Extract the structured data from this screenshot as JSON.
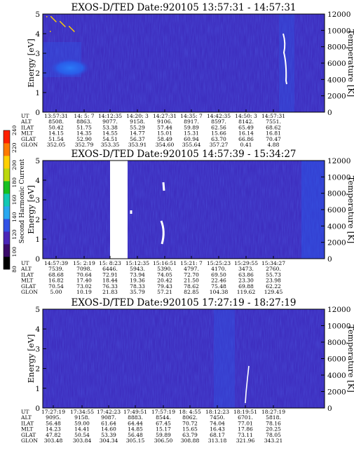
{
  "colors": {
    "background": "#3e2fc0",
    "enhanced": "#1a6cff",
    "streak": "#ffffff",
    "axis": "#000000"
  },
  "colorbar": {
    "label": "Second Harmonic Current",
    "ticks": [
      "80",
      "100",
      "120",
      "140",
      "160",
      "180",
      "200",
      "220",
      "240"
    ],
    "colors": [
      "#000000",
      "#3a0a6a",
      "#4a25b8",
      "#3252e6",
      "#2aa8f0",
      "#12c8b4",
      "#18c020",
      "#bcd80c",
      "#ffd000",
      "#ff7a00",
      "#ff2000"
    ]
  },
  "chart_data": [
    {
      "type": "heatmap",
      "title": "EXOS-D/TED   Date:920105   13:57:31 - 14:57:31",
      "ylabel": "Energy [eV]",
      "y2label": "Temperature [K]",
      "ylim": [
        0,
        5
      ],
      "y2lim": [
        0,
        12000
      ],
      "yticks": [
        "0",
        "1",
        "2",
        "3",
        "4",
        "5"
      ],
      "y2ticks": [
        "0",
        "2000",
        "4000",
        "6000",
        "8000",
        "10000",
        "12000"
      ],
      "ephemeris": {
        "labels": [
          "UT",
          "ALT",
          "ILAT",
          "MLT",
          "GLAT",
          "GLON"
        ],
        "columns": [
          [
            "13:57:31",
            "8508.",
            "50.42",
            "14.15",
            "51.54",
            "352.05"
          ],
          [
            "14: 5: 7",
            "8863.",
            "51.75",
            "14.35",
            "52.90",
            "352.79"
          ],
          [
            "14:12:35",
            "9077.",
            "53.38",
            "14.55",
            "54.51",
            "353.35"
          ],
          [
            "14:20: 3",
            "9158.",
            "55.29",
            "14.77",
            "56.37",
            "353.91"
          ],
          [
            "14:27:31",
            "9106.",
            "57.44",
            "15.01",
            "58.49",
            "354.60"
          ],
          [
            "14:35: 7",
            "8917.",
            "59.89",
            "15.31",
            "60.94",
            "355.64"
          ],
          [
            "14:42:35",
            "8597.",
            "62.56",
            "15.66",
            "63.70",
            "357.27"
          ],
          [
            "14:50: 3",
            "8142.",
            "65.49",
            "16.14",
            "66.86",
            "0.41"
          ],
          [
            "14:57:31",
            "7551.",
            "68.62",
            "16.81",
            "70.47",
            "4.88"
          ]
        ]
      }
    },
    {
      "type": "heatmap",
      "title": "EXOS-D/TED   Date:920105   14:57:39 - 15:34:27",
      "ylabel": "Energy [eV]",
      "y2label": "Temperature [K]",
      "ylim": [
        0,
        5
      ],
      "y2lim": [
        0,
        12000
      ],
      "yticks": [
        "0",
        "1",
        "2",
        "3",
        "4",
        "5"
      ],
      "y2ticks": [
        "0",
        "2000",
        "4000",
        "6000",
        "8000",
        "10000",
        "12000"
      ],
      "ephemeris": {
        "labels": [
          "UT",
          "ALT",
          "ILAT",
          "MLT",
          "GLAT",
          "GLON"
        ],
        "columns": [
          [
            "14:57:39",
            "7539.",
            "68.68",
            "16.82",
            "70.54",
            "5.00"
          ],
          [
            "15: 2:19",
            "7098.",
            "70.64",
            "17.40",
            "73.02",
            "10.19"
          ],
          [
            "15: 8:23",
            "6446.",
            "72.91",
            "18.44",
            "76.33",
            "21.83"
          ],
          [
            "15:12:35",
            "5943.",
            "73.94",
            "19.36",
            "78.33",
            "35.79"
          ],
          [
            "15:16:51",
            "5390.",
            "74.05",
            "20.42",
            "79.43",
            "57.21"
          ],
          [
            "15:21: 7",
            "4797.",
            "72.70",
            "21.50",
            "78.62",
            "82.85"
          ],
          [
            "15:25:23",
            "4170.",
            "69.50",
            "22.46",
            "75.48",
            "104.38"
          ],
          [
            "15:29:55",
            "3473.",
            "63.86",
            "23.30",
            "69.88",
            "119.62"
          ],
          [
            "15:34:27",
            "2760.",
            "55.73",
            "23.98",
            "62.22",
            "129.45"
          ]
        ]
      }
    },
    {
      "type": "heatmap",
      "title": "EXOS-D/TED   Date:920105   17:27:19 - 18:27:19",
      "ylabel": "Energy [eV]",
      "y2label": "Temperature [K]",
      "ylim": [
        0,
        5
      ],
      "y2lim": [
        0,
        12000
      ],
      "yticks": [
        "0",
        "1",
        "2",
        "3",
        "4",
        "5"
      ],
      "y2ticks": [
        "0",
        "2000",
        "4000",
        "6000",
        "8000",
        "10000",
        "12000"
      ],
      "ephemeris": {
        "labels": [
          "UT",
          "ALT",
          "ILAT",
          "MLT",
          "GLAT",
          "GLON"
        ],
        "columns": [
          [
            "17:27:19",
            "9095.",
            "56.48",
            "14.23",
            "47.82",
            "303.48"
          ],
          [
            "17:34:55",
            "9158.",
            "59.00",
            "14.41",
            "50.54",
            "303.84"
          ],
          [
            "17:42:23",
            "9087.",
            "61.64",
            "14.60",
            "53.39",
            "304.34"
          ],
          [
            "17:49:51",
            "8883.",
            "64.44",
            "14.85",
            "56.48",
            "305.15"
          ],
          [
            "17:57:19",
            "8544.",
            "67.45",
            "15.17",
            "59.89",
            "306.50"
          ],
          [
            "18: 4:55",
            "8062.",
            "70.72",
            "15.65",
            "63.79",
            "308.88"
          ],
          [
            "18:12:23",
            "7450.",
            "74.04",
            "16.43",
            "68.17",
            "313.18"
          ],
          [
            "18:19:51",
            "6701.",
            "77.01",
            "17.86",
            "73.11",
            "321.96"
          ],
          [
            "18:27:19",
            "5818.",
            "78.16",
            "20.25",
            "78.05",
            "343.21"
          ]
        ]
      }
    }
  ]
}
